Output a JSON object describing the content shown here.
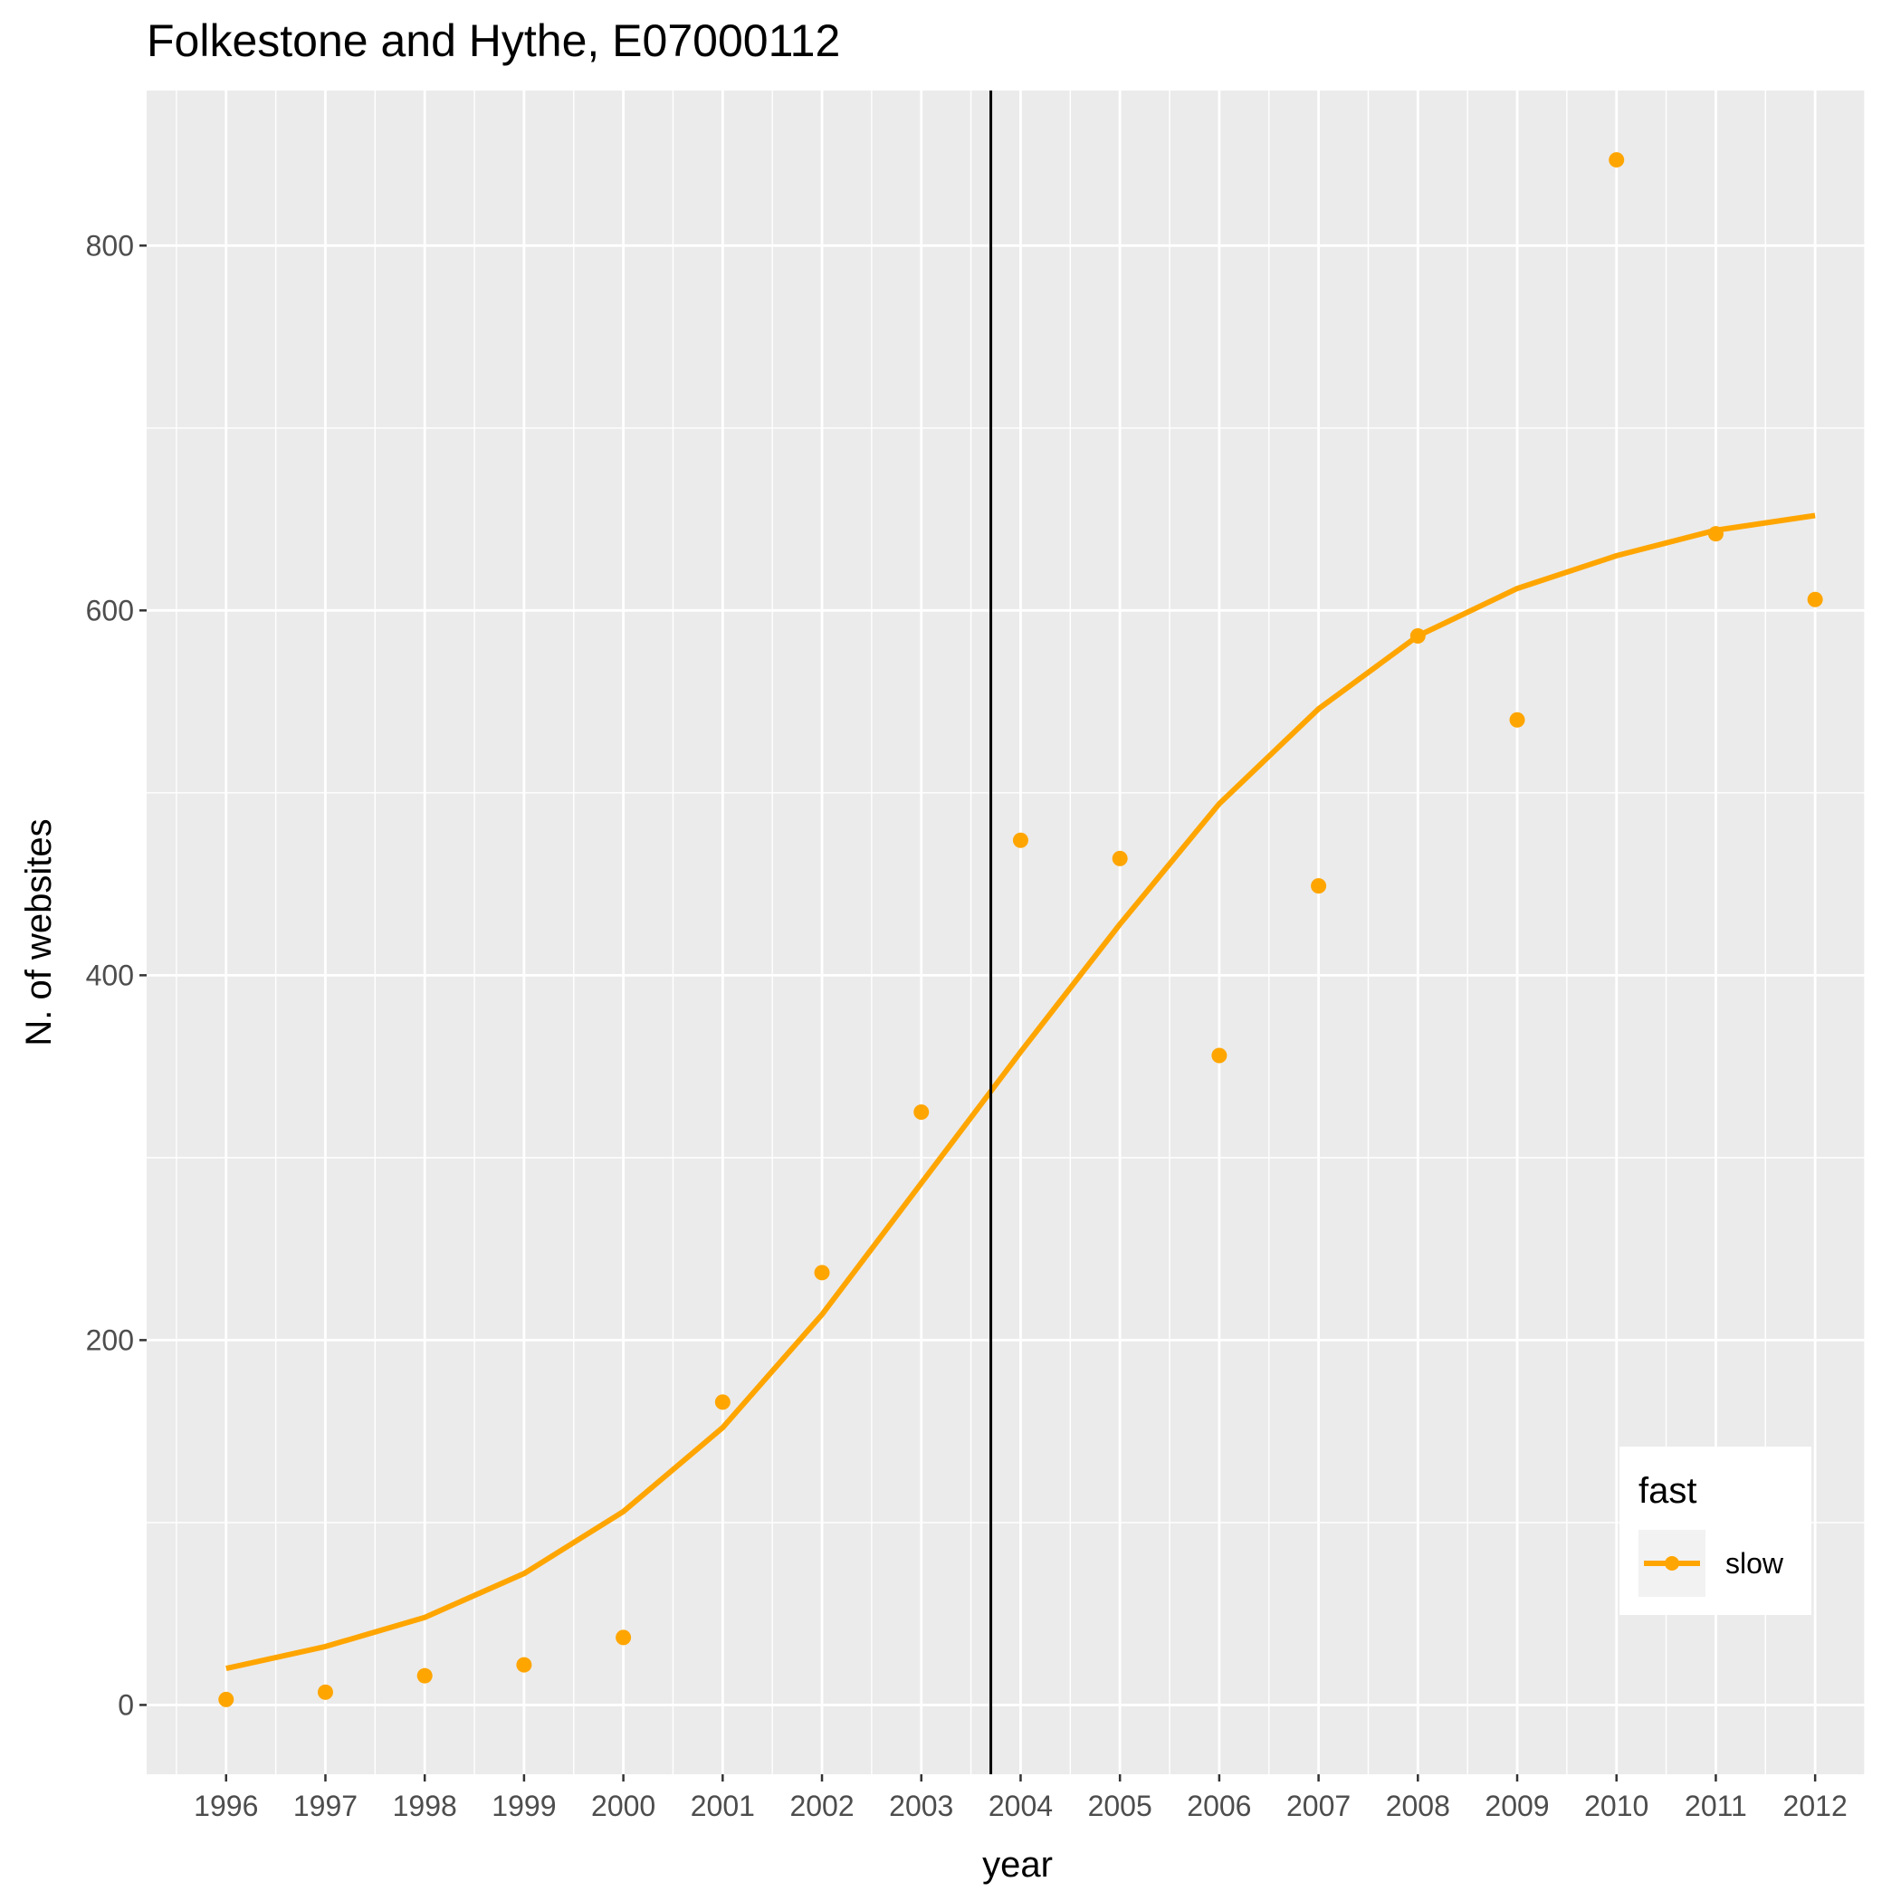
{
  "chart_data": {
    "type": "scatter",
    "title": "Folkestone and Hythe, E07000112",
    "xlabel": "year",
    "ylabel": "N. of websites",
    "x": [
      1996,
      1997,
      1998,
      1999,
      2000,
      2001,
      2002,
      2003,
      2004,
      2005,
      2006,
      2007,
      2008,
      2009,
      2010,
      2011,
      2012
    ],
    "x_tick_labels": [
      "1996",
      "1997",
      "1998",
      "1999",
      "2000",
      "2001",
      "2002",
      "2003",
      "2004",
      "2005",
      "2006",
      "2007",
      "2008",
      "2009",
      "2010",
      "2011",
      "2012"
    ],
    "y_ticks": [
      0,
      200,
      400,
      600,
      800
    ],
    "y_tick_labels": [
      "0",
      "200",
      "400",
      "600",
      "800"
    ],
    "xlim": [
      1995.2,
      2012.5
    ],
    "ylim": [
      -38,
      885
    ],
    "grid": true,
    "series": [
      {
        "name": "slow",
        "color": "#FFA500",
        "points": [
          3,
          7,
          16,
          22,
          37,
          166,
          237,
          325,
          474,
          464,
          356,
          449,
          586,
          540,
          847,
          642,
          606
        ],
        "trend": [
          20,
          32,
          48,
          72,
          106,
          152,
          214,
          286,
          358,
          428,
          494,
          546,
          586,
          612,
          630,
          644,
          652
        ]
      }
    ],
    "vline_x": 2003.7,
    "vline_color": "#000000",
    "legend": {
      "title": "fast",
      "position": "bottom-right"
    }
  }
}
